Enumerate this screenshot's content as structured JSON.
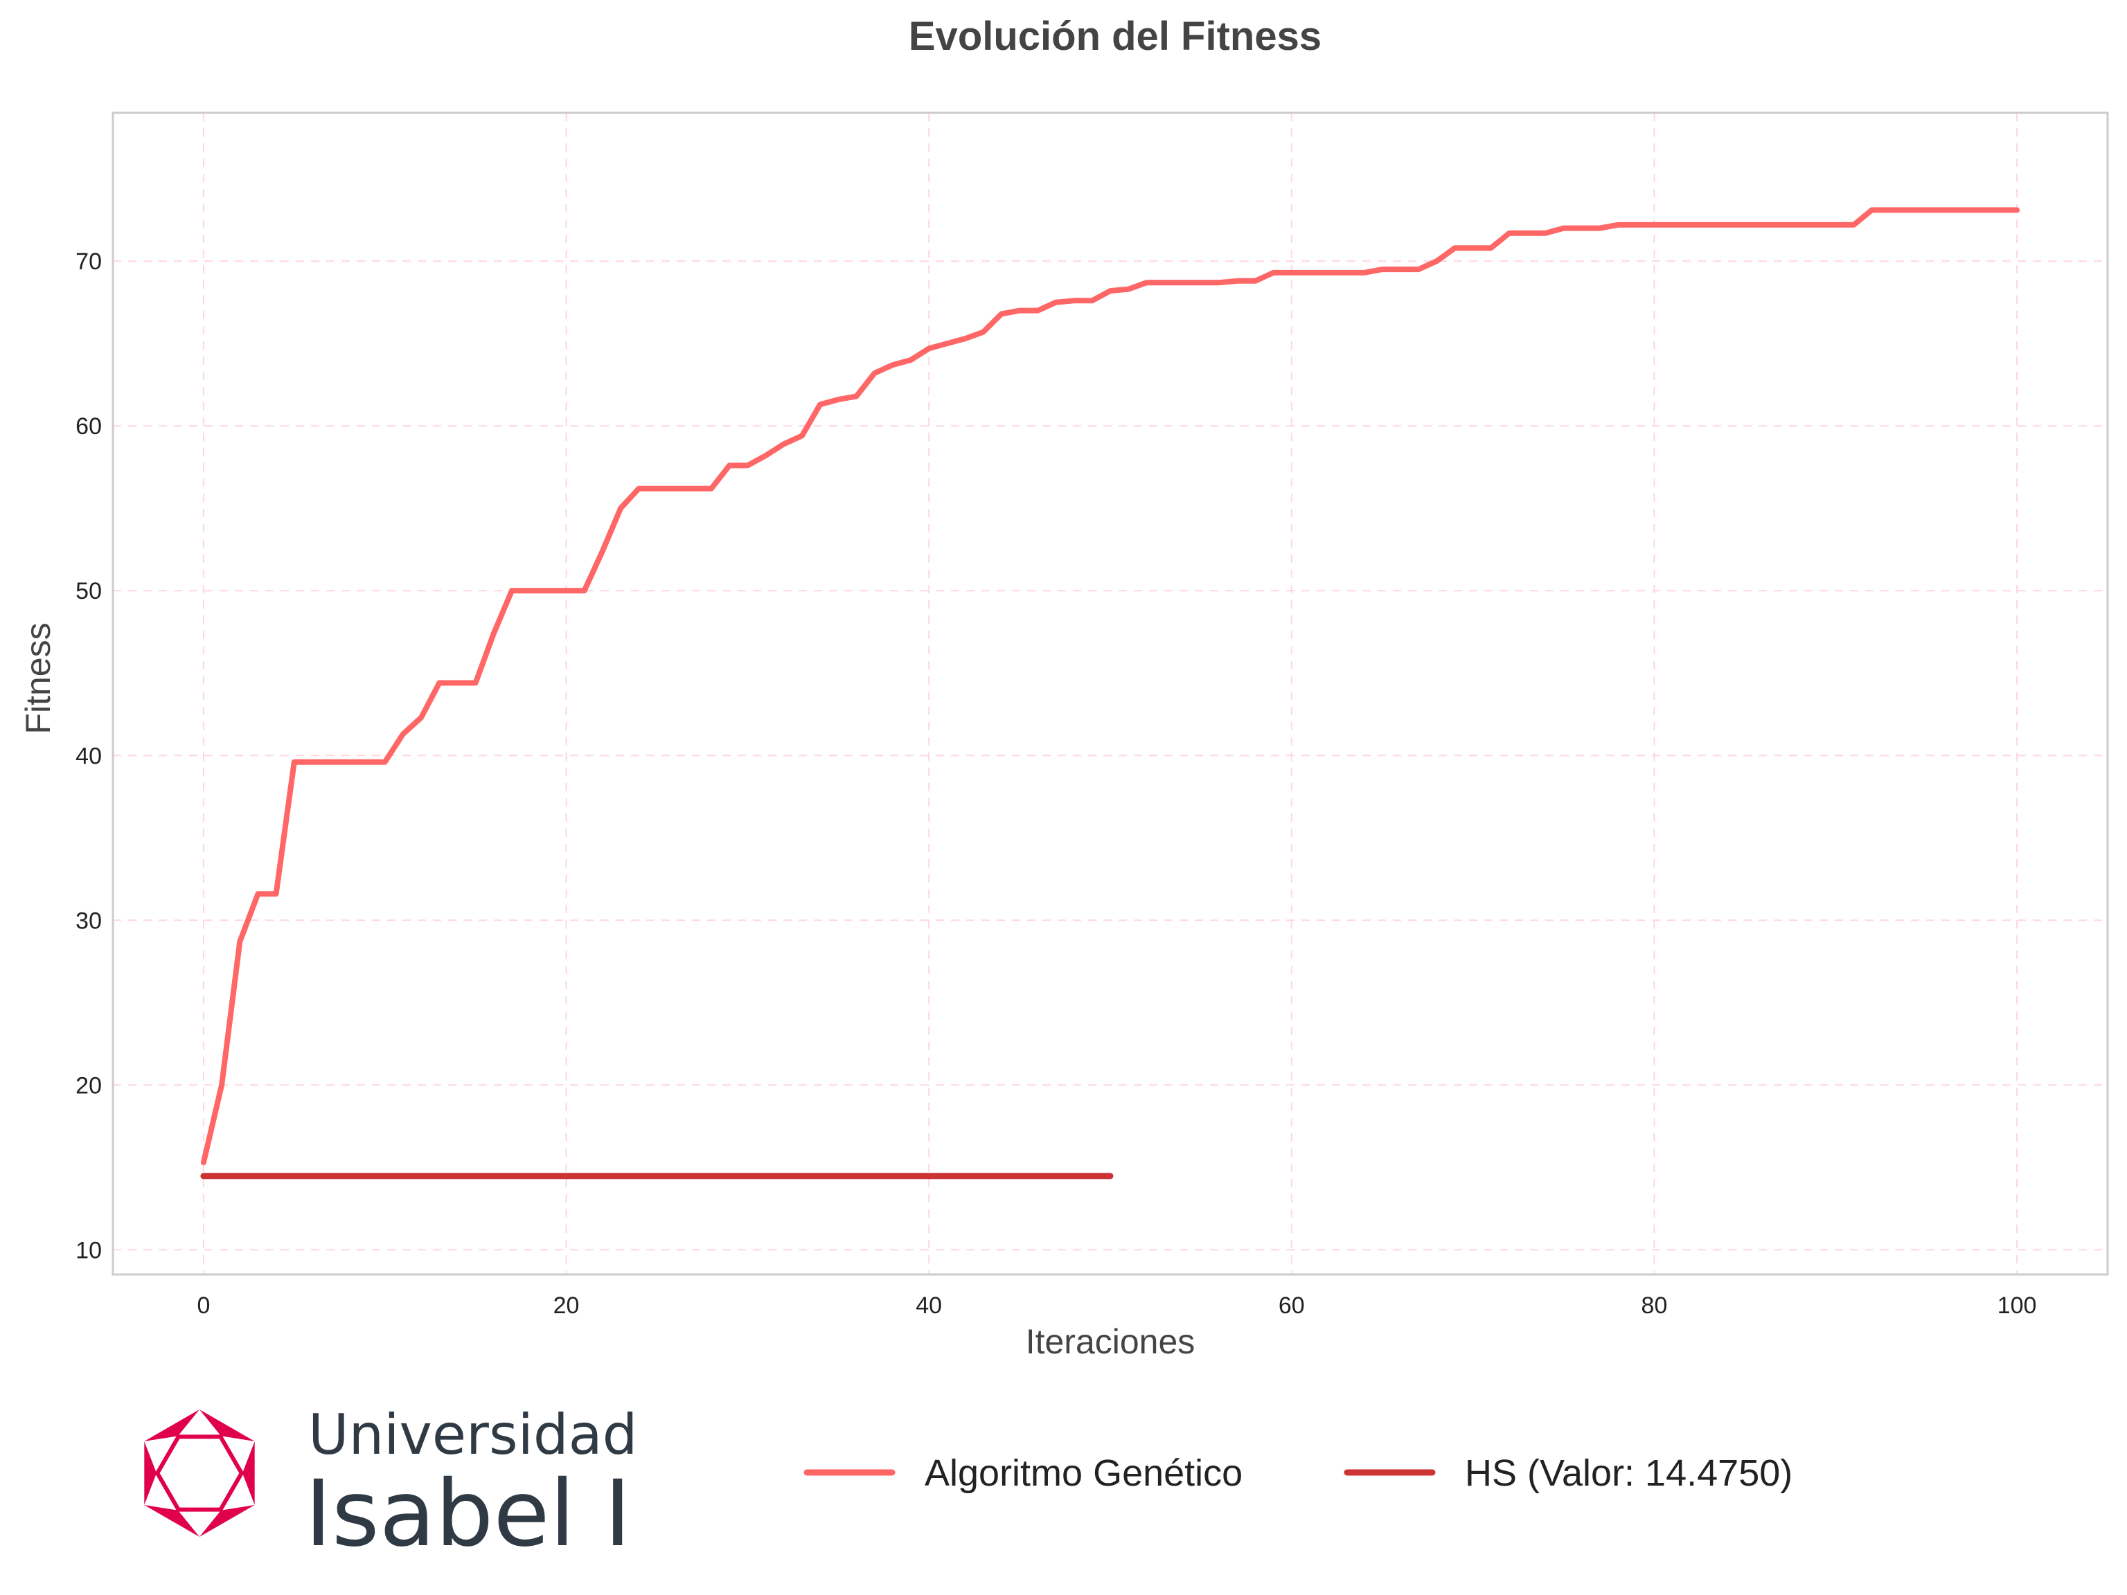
{
  "chart_data": {
    "type": "line",
    "title": "Evolución del Fitness",
    "xlabel": "Iteraciones",
    "ylabel": "Fitness",
    "xlim": [
      -5,
      105
    ],
    "ylim": [
      8.5,
      79
    ],
    "xticks": [
      0,
      20,
      40,
      60,
      80,
      100
    ],
    "yticks": [
      10,
      20,
      30,
      40,
      50,
      60,
      70
    ],
    "grid": true,
    "legend_position": "bottom",
    "series": [
      {
        "name": "Algoritmo Genético",
        "color": "#ff6666",
        "x": [
          0,
          1,
          2,
          3,
          4,
          5,
          6,
          7,
          8,
          9,
          10,
          11,
          12,
          13,
          14,
          15,
          16,
          17,
          18,
          19,
          20,
          21,
          22,
          23,
          24,
          25,
          26,
          27,
          28,
          29,
          30,
          31,
          32,
          33,
          34,
          35,
          36,
          37,
          38,
          39,
          40,
          41,
          42,
          43,
          44,
          45,
          46,
          47,
          48,
          49,
          50,
          51,
          52,
          53,
          54,
          55,
          56,
          57,
          58,
          59,
          60,
          61,
          62,
          63,
          64,
          65,
          66,
          67,
          68,
          69,
          70,
          71,
          72,
          73,
          74,
          75,
          76,
          77,
          78,
          79,
          80,
          81,
          82,
          83,
          84,
          85,
          86,
          87,
          88,
          89,
          90,
          91,
          92,
          93,
          94,
          95,
          96,
          97,
          98,
          99,
          100
        ],
        "y": [
          15.3,
          20,
          28.7,
          31.6,
          31.6,
          39.6,
          39.6,
          39.6,
          39.6,
          39.6,
          39.6,
          41.3,
          42.3,
          44.4,
          44.4,
          44.4,
          47.4,
          50,
          50,
          50,
          50,
          50,
          52.4,
          55,
          56.2,
          56.2,
          56.2,
          56.2,
          56.2,
          57.6,
          57.6,
          58.2,
          58.9,
          59.4,
          61.3,
          61.6,
          61.8,
          63.2,
          63.7,
          64,
          64.7,
          65,
          65.3,
          65.7,
          66.8,
          67,
          67,
          67.5,
          67.6,
          67.6,
          68.2,
          68.3,
          68.7,
          68.7,
          68.7,
          68.7,
          68.7,
          68.8,
          68.8,
          69.3,
          69.3,
          69.3,
          69.3,
          69.3,
          69.3,
          69.5,
          69.5,
          69.5,
          70,
          70.8,
          70.8,
          70.8,
          71.7,
          71.7,
          71.7,
          72,
          72,
          72,
          72.2,
          72.2,
          72.2,
          72.2,
          72.2,
          72.2,
          72.2,
          72.2,
          72.2,
          72.2,
          72.2,
          72.2,
          72.2,
          72.2,
          73.1,
          73.1,
          73.1,
          73.1,
          73.1,
          73.1,
          73.1,
          73.1,
          73.1
        ]
      },
      {
        "name": "HS (Valor: 14.4750)",
        "color": "#cc3333",
        "x": [
          0,
          50
        ],
        "y": [
          14.475,
          14.475
        ]
      }
    ]
  },
  "logo": {
    "line1": "Universidad",
    "line2": "Isabel I",
    "color": "#e0004d"
  }
}
